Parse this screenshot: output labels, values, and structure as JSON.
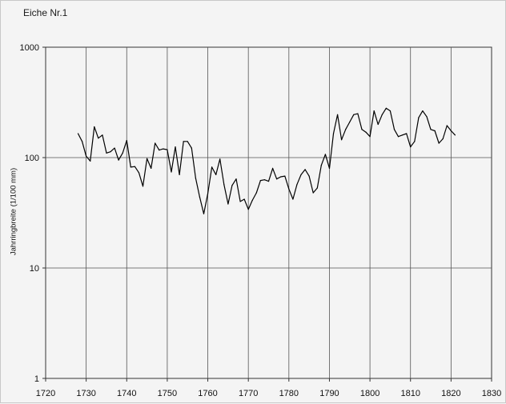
{
  "chart_data": {
    "type": "line",
    "title": "Eiche Nr.1",
    "ylabel": "Jahrringbreite (1/100 mm)",
    "xlabel": "",
    "yscale": "log",
    "xlim": [
      1720,
      1830
    ],
    "ylim": [
      1,
      1000
    ],
    "grid": true,
    "xticks": [
      "1720",
      "1730",
      "1740",
      "1750",
      "1760",
      "1770",
      "1780",
      "1790",
      "1800",
      "1810",
      "1820",
      "1830"
    ],
    "yticks": [
      "1",
      "10",
      "100",
      "1000"
    ],
    "series": [
      {
        "x": [
          1728,
          1729,
          1730,
          1731,
          1732,
          1733,
          1734,
          1735,
          1736,
          1737,
          1738,
          1739,
          1740,
          1741,
          1742,
          1743,
          1744,
          1745,
          1746,
          1747,
          1748,
          1749,
          1750,
          1751,
          1752,
          1753,
          1754,
          1755,
          1756,
          1757,
          1758,
          1759,
          1760,
          1761,
          1762,
          1763,
          1764,
          1765,
          1766,
          1767,
          1768,
          1769,
          1770,
          1771,
          1772,
          1773,
          1774,
          1775,
          1776,
          1777,
          1778,
          1779,
          1780,
          1781,
          1782,
          1783,
          1784,
          1785,
          1786,
          1787,
          1788,
          1789,
          1790,
          1791,
          1792,
          1793,
          1794,
          1795,
          1796,
          1797,
          1798,
          1799,
          1800,
          1801,
          1802,
          1803,
          1804,
          1805,
          1806,
          1807,
          1808,
          1809,
          1810,
          1811,
          1812,
          1813,
          1814,
          1815,
          1816,
          1817,
          1818,
          1819,
          1820,
          1821
        ],
        "y": [
          165,
          140,
          103,
          93,
          190,
          150,
          160,
          110,
          113,
          122,
          95,
          110,
          143,
          82,
          83,
          73,
          55,
          98,
          80,
          135,
          117,
          120,
          118,
          74,
          125,
          70,
          140,
          140,
          122,
          65,
          44,
          31,
          47,
          82,
          70,
          97,
          57,
          38,
          56,
          64,
          40,
          42,
          34,
          41,
          48,
          62,
          63,
          61,
          80,
          64,
          67,
          68,
          52,
          42,
          57,
          70,
          78,
          68,
          48,
          53,
          85,
          107,
          80,
          165,
          245,
          145,
          180,
          210,
          245,
          250,
          180,
          170,
          155,
          265,
          200,
          245,
          280,
          265,
          180,
          155,
          160,
          165,
          125,
          140,
          230,
          265,
          235,
          180,
          175,
          135,
          148,
          195,
          175,
          160
        ]
      }
    ]
  }
}
